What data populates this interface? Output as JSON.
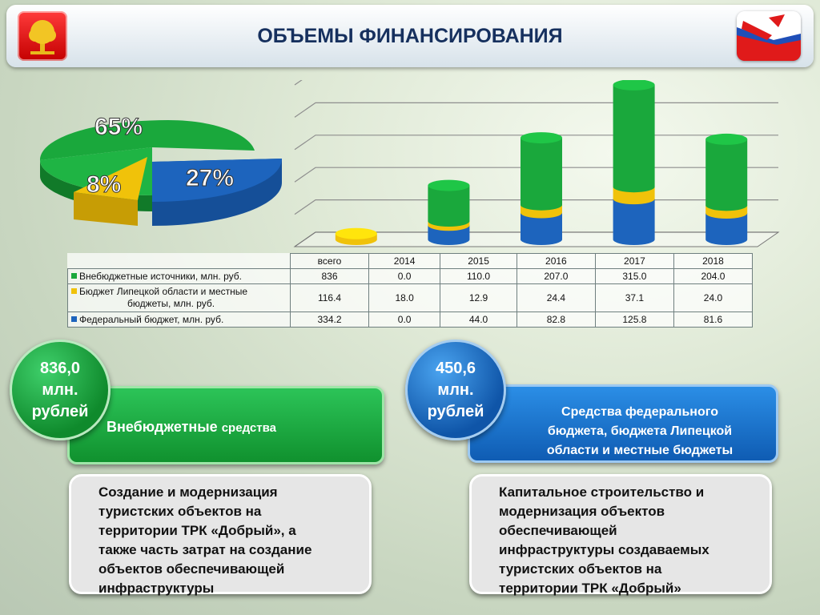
{
  "header": {
    "title": "ОБЪЕМЫ ФИНАНСИРОВАНИЯ"
  },
  "pie": {
    "slices": [
      {
        "label": "65%",
        "value": 65,
        "color": "#1aa83c"
      },
      {
        "label": "8%",
        "value": 8,
        "color": "#f0c20a"
      },
      {
        "label": "27%",
        "value": 27,
        "color": "#1d64bd"
      }
    ]
  },
  "chart_data": {
    "type": "bar",
    "stacked": true,
    "categories": [
      "2014",
      "2015",
      "2016",
      "2017",
      "2018"
    ],
    "series": [
      {
        "name": "Федеральный бюджет, млн. руб.",
        "values": [
          0.0,
          44.0,
          82.8,
          125.8,
          81.6
        ],
        "color": "#1d64bd"
      },
      {
        "name": "Бюджет Липецкой области и местные бюджеты, млн. руб.",
        "values": [
          18.0,
          12.9,
          24.4,
          37.1,
          24.0
        ],
        "color": "#f0c20a"
      },
      {
        "name": "Внебюджетные источники, млн. руб.",
        "values": [
          0.0,
          110.0,
          207.0,
          315.0,
          204.0
        ],
        "color": "#1aa83c"
      }
    ],
    "ylim": [
      0,
      500
    ],
    "grid": true
  },
  "table": {
    "headers": [
      "всего",
      "2014",
      "2015",
      "2016",
      "2017",
      "2018"
    ],
    "rows": [
      {
        "label": "Внебюджетные источники, млн. руб.",
        "color": "#1aa83c",
        "values": [
          "836",
          "0.0",
          "110.0",
          "207.0",
          "315.0",
          "204.0"
        ]
      },
      {
        "label1": "Бюджет Липецкой области и местные",
        "label2": "бюджеты, млн. руб.",
        "color": "#f0c20a",
        "values": [
          "116.4",
          "18.0",
          "12.9",
          "24.4",
          "37.1",
          "24.0"
        ]
      },
      {
        "label": "Федеральный бюджет, млн. руб.",
        "color": "#1d64bd",
        "values": [
          "334.2",
          "0.0",
          "44.0",
          "82.8",
          "125.8",
          "81.6"
        ]
      }
    ]
  },
  "left_panel": {
    "amount": [
      "836,0",
      "млн.",
      "рублей"
    ],
    "banner_main": "Внебюджетные",
    "banner_small": "средства",
    "description": [
      "Создание и модернизация",
      "туристских объектов на",
      "территории ТРК «Добрый», а",
      "также часть затрат на создание",
      "объектов обеспечивающей",
      "инфраструктуры"
    ]
  },
  "right_panel": {
    "amount": [
      "450,6",
      "млн.",
      "рублей"
    ],
    "banner": [
      "Средства федерального",
      "бюджета, бюджета Липецкой",
      "области и местные бюджеты"
    ],
    "description": [
      "Капитальное строительство и",
      "модернизация объектов",
      "обеспечивающей",
      "инфраструктуры создаваемых",
      "туристских объектов на",
      "территории ТРК «Добрый»"
    ]
  }
}
